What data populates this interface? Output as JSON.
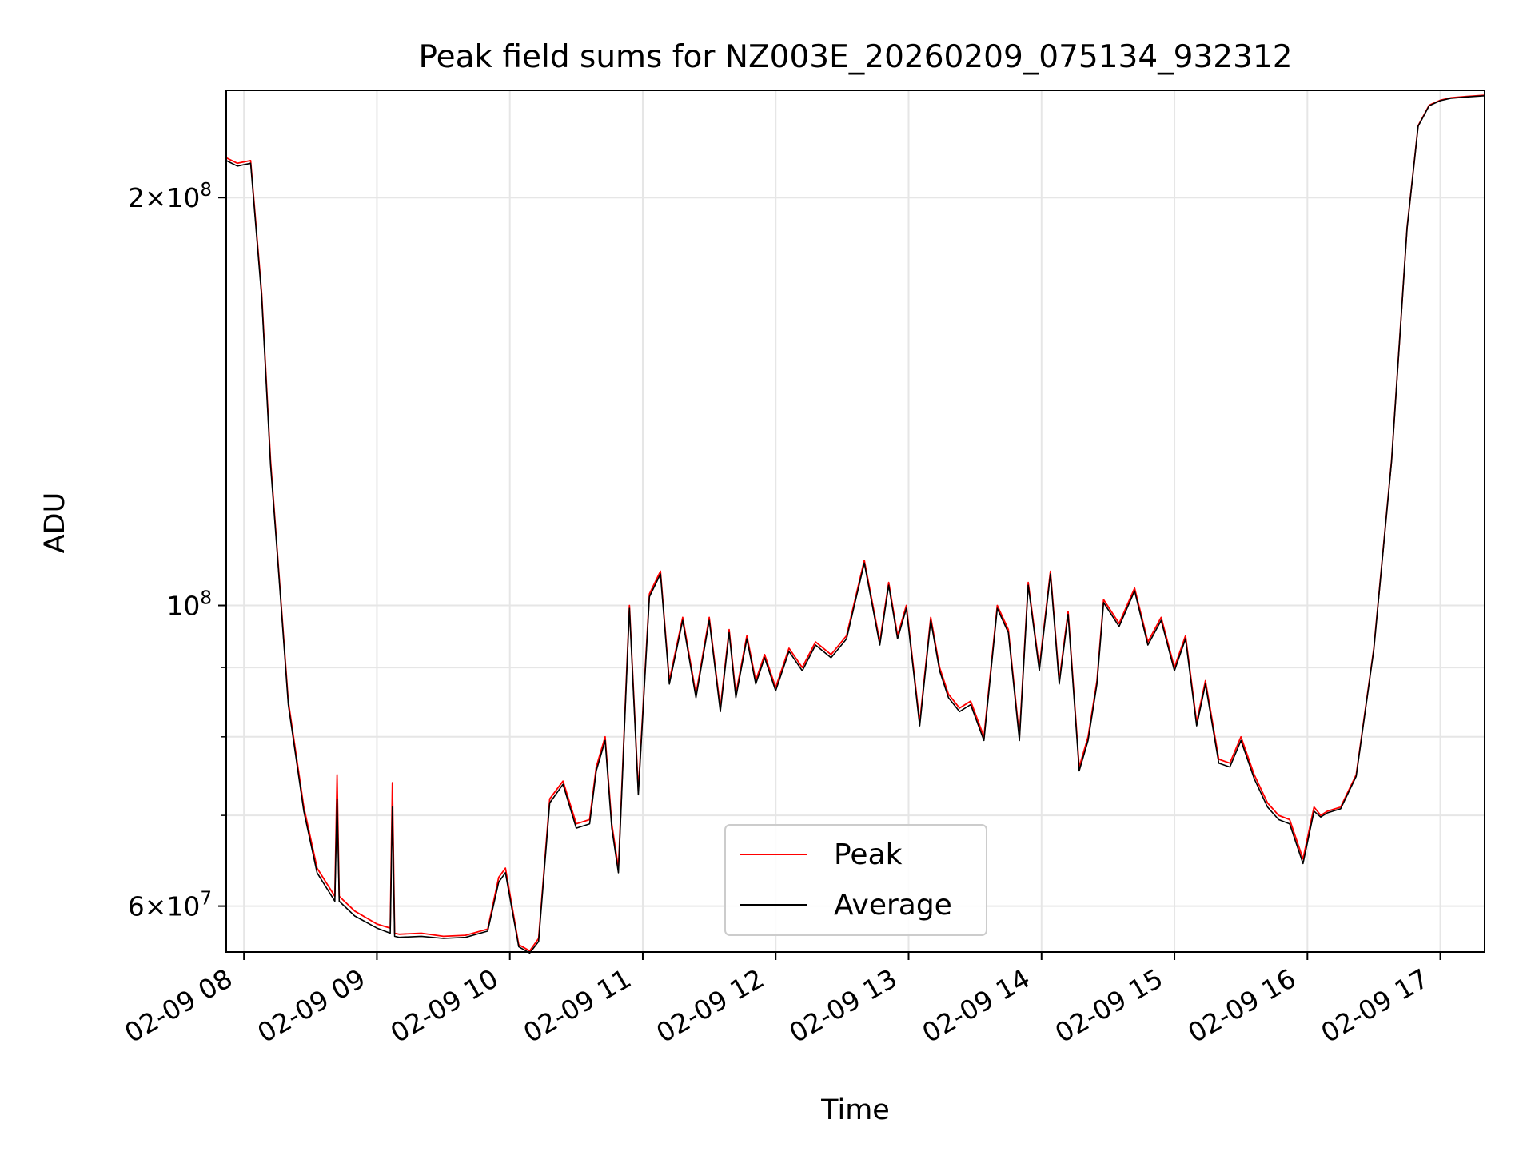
{
  "chart_data": {
    "type": "line",
    "title": "Peak field sums for NZ003E_20260209_075134_932312",
    "xlabel": "Time",
    "ylabel": "ADU",
    "yscale": "log",
    "grid": true,
    "legend_position": "lower-center",
    "xlim": [
      "2026-02-09 07:52",
      "2026-02-09 17:20"
    ],
    "ylim": [
      55500000,
      240000000
    ],
    "x_ticks": [
      {
        "value": "2026-02-09 08:00",
        "label": "02-09 08"
      },
      {
        "value": "2026-02-09 09:00",
        "label": "02-09 09"
      },
      {
        "value": "2026-02-09 10:00",
        "label": "02-09 10"
      },
      {
        "value": "2026-02-09 11:00",
        "label": "02-09 11"
      },
      {
        "value": "2026-02-09 12:00",
        "label": "02-09 12"
      },
      {
        "value": "2026-02-09 13:00",
        "label": "02-09 13"
      },
      {
        "value": "2026-02-09 14:00",
        "label": "02-09 14"
      },
      {
        "value": "2026-02-09 15:00",
        "label": "02-09 15"
      },
      {
        "value": "2026-02-09 16:00",
        "label": "02-09 16"
      },
      {
        "value": "2026-02-09 17:00",
        "label": "02-09 17"
      }
    ],
    "y_ticks": [
      {
        "value": 60000000,
        "base": "6",
        "exp": "7"
      },
      {
        "value": 100000000,
        "base": "",
        "exp": "8"
      },
      {
        "value": 200000000,
        "base": "2",
        "exp": "8"
      }
    ],
    "y_minor_ticks": [
      70000000,
      80000000,
      90000000
    ],
    "series": [
      {
        "name": "Peak",
        "color": "#ff0000",
        "x": [
          "2026-02-09 07:52",
          "2026-02-09 07:57",
          "2026-02-09 08:03",
          "2026-02-09 08:08",
          "2026-02-09 08:12",
          "2026-02-09 08:15",
          "2026-02-09 08:20",
          "2026-02-09 08:27",
          "2026-02-09 08:33",
          "2026-02-09 08:41",
          "2026-02-09 08:42",
          "2026-02-09 08:43",
          "2026-02-09 08:50",
          "2026-02-09 09:00",
          "2026-02-09 09:06",
          "2026-02-09 09:07",
          "2026-02-09 09:08",
          "2026-02-09 09:10",
          "2026-02-09 09:20",
          "2026-02-09 09:30",
          "2026-02-09 09:40",
          "2026-02-09 09:50",
          "2026-02-09 09:55",
          "2026-02-09 09:58",
          "2026-02-09 10:04",
          "2026-02-09 10:09",
          "2026-02-09 10:13",
          "2026-02-09 10:18",
          "2026-02-09 10:24",
          "2026-02-09 10:30",
          "2026-02-09 10:36",
          "2026-02-09 10:39",
          "2026-02-09 10:43",
          "2026-02-09 10:46",
          "2026-02-09 10:49",
          "2026-02-09 10:54",
          "2026-02-09 10:58",
          "2026-02-09 11:03",
          "2026-02-09 11:08",
          "2026-02-09 11:12",
          "2026-02-09 11:18",
          "2026-02-09 11:24",
          "2026-02-09 11:30",
          "2026-02-09 11:35",
          "2026-02-09 11:39",
          "2026-02-09 11:42",
          "2026-02-09 11:47",
          "2026-02-09 11:51",
          "2026-02-09 11:55",
          "2026-02-09 12:00",
          "2026-02-09 12:06",
          "2026-02-09 12:12",
          "2026-02-09 12:18",
          "2026-02-09 12:25",
          "2026-02-09 12:32",
          "2026-02-09 12:40",
          "2026-02-09 12:47",
          "2026-02-09 12:51",
          "2026-02-09 12:55",
          "2026-02-09 12:59",
          "2026-02-09 13:05",
          "2026-02-09 13:10",
          "2026-02-09 13:14",
          "2026-02-09 13:18",
          "2026-02-09 13:23",
          "2026-02-09 13:28",
          "2026-02-09 13:34",
          "2026-02-09 13:40",
          "2026-02-09 13:45",
          "2026-02-09 13:50",
          "2026-02-09 13:54",
          "2026-02-09 13:59",
          "2026-02-09 14:04",
          "2026-02-09 14:08",
          "2026-02-09 14:12",
          "2026-02-09 14:17",
          "2026-02-09 14:21",
          "2026-02-09 14:25",
          "2026-02-09 14:28",
          "2026-02-09 14:35",
          "2026-02-09 14:42",
          "2026-02-09 14:48",
          "2026-02-09 14:54",
          "2026-02-09 15:00",
          "2026-02-09 15:05",
          "2026-02-09 15:10",
          "2026-02-09 15:14",
          "2026-02-09 15:20",
          "2026-02-09 15:25",
          "2026-02-09 15:30",
          "2026-02-09 15:36",
          "2026-02-09 15:42",
          "2026-02-09 15:47",
          "2026-02-09 15:52",
          "2026-02-09 15:58",
          "2026-02-09 16:03",
          "2026-02-09 16:06",
          "2026-02-09 16:09",
          "2026-02-09 16:15",
          "2026-02-09 16:22",
          "2026-02-09 16:30",
          "2026-02-09 16:38",
          "2026-02-09 16:45",
          "2026-02-09 16:50",
          "2026-02-09 16:55",
          "2026-02-09 17:00",
          "2026-02-09 17:05",
          "2026-02-09 17:12",
          "2026-02-09 17:20"
        ],
        "y": [
          214000000,
          212000000,
          213000000,
          170000000,
          128000000,
          110000000,
          85000000,
          71000000,
          64000000,
          61000000,
          75000000,
          61000000,
          59500000,
          58200000,
          57800000,
          74000000,
          57300000,
          57200000,
          57300000,
          57000000,
          57100000,
          57700000,
          63000000,
          64000000,
          56200000,
          55600000,
          56800000,
          72000000,
          74200000,
          69000000,
          69500000,
          76000000,
          80000000,
          69000000,
          64000000,
          100000000,
          73000000,
          102000000,
          106000000,
          88000000,
          98000000,
          86000000,
          98000000,
          84000000,
          96000000,
          86000000,
          95000000,
          88000000,
          92000000,
          87000000,
          93000000,
          90000000,
          94000000,
          92000000,
          95000000,
          108000000,
          94000000,
          104000000,
          95000000,
          100000000,
          82000000,
          98000000,
          90000000,
          86000000,
          84000000,
          85000000,
          80000000,
          100000000,
          96000000,
          80000000,
          104000000,
          90000000,
          106000000,
          88000000,
          99000000,
          76000000,
          80000000,
          88000000,
          101000000,
          97000000,
          103000000,
          94000000,
          98000000,
          90000000,
          95000000,
          82000000,
          88000000,
          77000000,
          76500000,
          80000000,
          75000000,
          71500000,
          70000000,
          69500000,
          65000000,
          71000000,
          70000000,
          70500000,
          71000000,
          75000000,
          93000000,
          128000000,
          190000000,
          226000000,
          234000000,
          236000000,
          237000000,
          237500000,
          238000000
        ]
      },
      {
        "name": "Average",
        "color": "#000000",
        "x": [
          "2026-02-09 07:52",
          "2026-02-09 07:57",
          "2026-02-09 08:03",
          "2026-02-09 08:08",
          "2026-02-09 08:12",
          "2026-02-09 08:15",
          "2026-02-09 08:20",
          "2026-02-09 08:27",
          "2026-02-09 08:33",
          "2026-02-09 08:41",
          "2026-02-09 08:42",
          "2026-02-09 08:43",
          "2026-02-09 08:50",
          "2026-02-09 09:00",
          "2026-02-09 09:06",
          "2026-02-09 09:07",
          "2026-02-09 09:08",
          "2026-02-09 09:10",
          "2026-02-09 09:20",
          "2026-02-09 09:30",
          "2026-02-09 09:40",
          "2026-02-09 09:50",
          "2026-02-09 09:55",
          "2026-02-09 09:58",
          "2026-02-09 10:04",
          "2026-02-09 10:09",
          "2026-02-09 10:13",
          "2026-02-09 10:18",
          "2026-02-09 10:24",
          "2026-02-09 10:30",
          "2026-02-09 10:36",
          "2026-02-09 10:39",
          "2026-02-09 10:43",
          "2026-02-09 10:46",
          "2026-02-09 10:49",
          "2026-02-09 10:54",
          "2026-02-09 10:58",
          "2026-02-09 11:03",
          "2026-02-09 11:08",
          "2026-02-09 11:12",
          "2026-02-09 11:18",
          "2026-02-09 11:24",
          "2026-02-09 11:30",
          "2026-02-09 11:35",
          "2026-02-09 11:39",
          "2026-02-09 11:42",
          "2026-02-09 11:47",
          "2026-02-09 11:51",
          "2026-02-09 11:55",
          "2026-02-09 12:00",
          "2026-02-09 12:06",
          "2026-02-09 12:12",
          "2026-02-09 12:18",
          "2026-02-09 12:25",
          "2026-02-09 12:32",
          "2026-02-09 12:40",
          "2026-02-09 12:47",
          "2026-02-09 12:51",
          "2026-02-09 12:55",
          "2026-02-09 12:59",
          "2026-02-09 13:05",
          "2026-02-09 13:10",
          "2026-02-09 13:14",
          "2026-02-09 13:18",
          "2026-02-09 13:23",
          "2026-02-09 13:28",
          "2026-02-09 13:34",
          "2026-02-09 13:40",
          "2026-02-09 13:45",
          "2026-02-09 13:50",
          "2026-02-09 13:54",
          "2026-02-09 13:59",
          "2026-02-09 14:04",
          "2026-02-09 14:08",
          "2026-02-09 14:12",
          "2026-02-09 14:17",
          "2026-02-09 14:21",
          "2026-02-09 14:25",
          "2026-02-09 14:28",
          "2026-02-09 14:35",
          "2026-02-09 14:42",
          "2026-02-09 14:48",
          "2026-02-09 14:54",
          "2026-02-09 15:00",
          "2026-02-09 15:05",
          "2026-02-09 15:10",
          "2026-02-09 15:14",
          "2026-02-09 15:20",
          "2026-02-09 15:25",
          "2026-02-09 15:30",
          "2026-02-09 15:36",
          "2026-02-09 15:42",
          "2026-02-09 15:47",
          "2026-02-09 15:52",
          "2026-02-09 15:58",
          "2026-02-09 16:03",
          "2026-02-09 16:06",
          "2026-02-09 16:09",
          "2026-02-09 16:15",
          "2026-02-09 16:22",
          "2026-02-09 16:30",
          "2026-02-09 16:38",
          "2026-02-09 16:45",
          "2026-02-09 16:50",
          "2026-02-09 16:55",
          "2026-02-09 17:00",
          "2026-02-09 17:05",
          "2026-02-09 17:12",
          "2026-02-09 17:20"
        ],
        "y": [
          213000000,
          211000000,
          212000000,
          169000000,
          127000000,
          109500000,
          84500000,
          70500000,
          63500000,
          60500000,
          72000000,
          60500000,
          59000000,
          57800000,
          57300000,
          71000000,
          57000000,
          56900000,
          57000000,
          56800000,
          56900000,
          57500000,
          62500000,
          63500000,
          56000000,
          55400000,
          56500000,
          71500000,
          73800000,
          68500000,
          69000000,
          75500000,
          79500000,
          68500000,
          63500000,
          99500000,
          72500000,
          101500000,
          105500000,
          87500000,
          97500000,
          85500000,
          97500000,
          83500000,
          95500000,
          85500000,
          94500000,
          87500000,
          91500000,
          86500000,
          92500000,
          89500000,
          93500000,
          91500000,
          94500000,
          107500000,
          93500000,
          103500000,
          94500000,
          99500000,
          81500000,
          97500000,
          89500000,
          85500000,
          83500000,
          84500000,
          79500000,
          99500000,
          95500000,
          79500000,
          103500000,
          89500000,
          105500000,
          87500000,
          98500000,
          75500000,
          79500000,
          87500000,
          100500000,
          96500000,
          102500000,
          93500000,
          97500000,
          89500000,
          94500000,
          81500000,
          87500000,
          76500000,
          76000000,
          79500000,
          74500000,
          71000000,
          69500000,
          69000000,
          64500000,
          70500000,
          69800000,
          70300000,
          70800000,
          74800000,
          92800000,
          127800000,
          189800000,
          225800000,
          233800000,
          235800000,
          236800000,
          237300000,
          237800000
        ]
      }
    ]
  }
}
